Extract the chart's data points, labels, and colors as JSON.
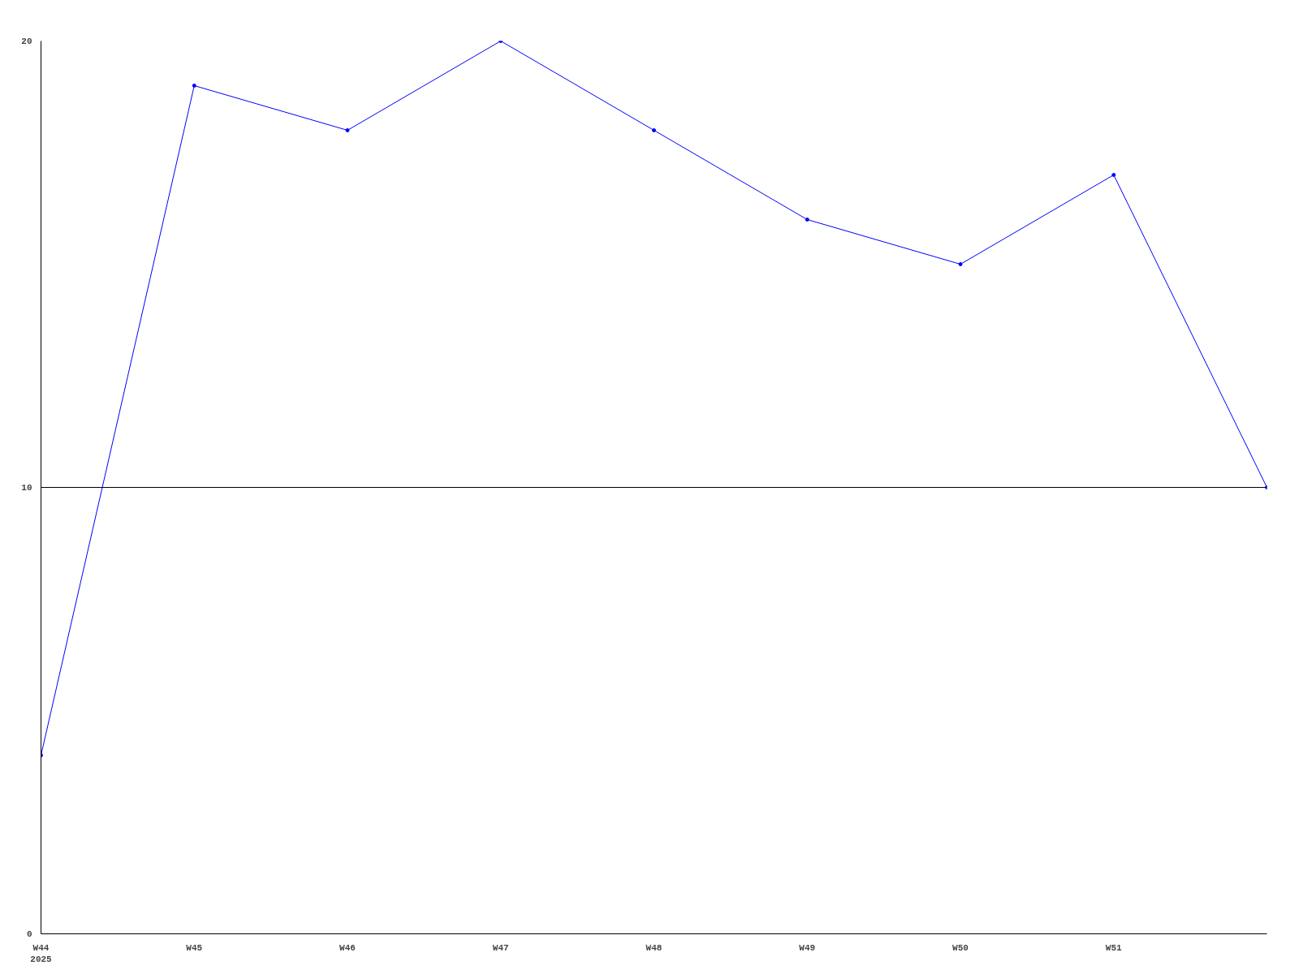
{
  "chart_data": {
    "type": "line",
    "categories": [
      "W44\n2025",
      "W45",
      "W46",
      "W47",
      "W48",
      "W49",
      "W50",
      "W51",
      null
    ],
    "series": [
      {
        "color": "#0000ff",
        "values": [
          4,
          19,
          18,
          20,
          18,
          16,
          15,
          17,
          10
        ]
      }
    ],
    "ylim": [
      0,
      20
    ],
    "yticks": [
      0,
      10,
      20
    ],
    "grid": "y",
    "marker": "circle",
    "line_style": "solid"
  }
}
